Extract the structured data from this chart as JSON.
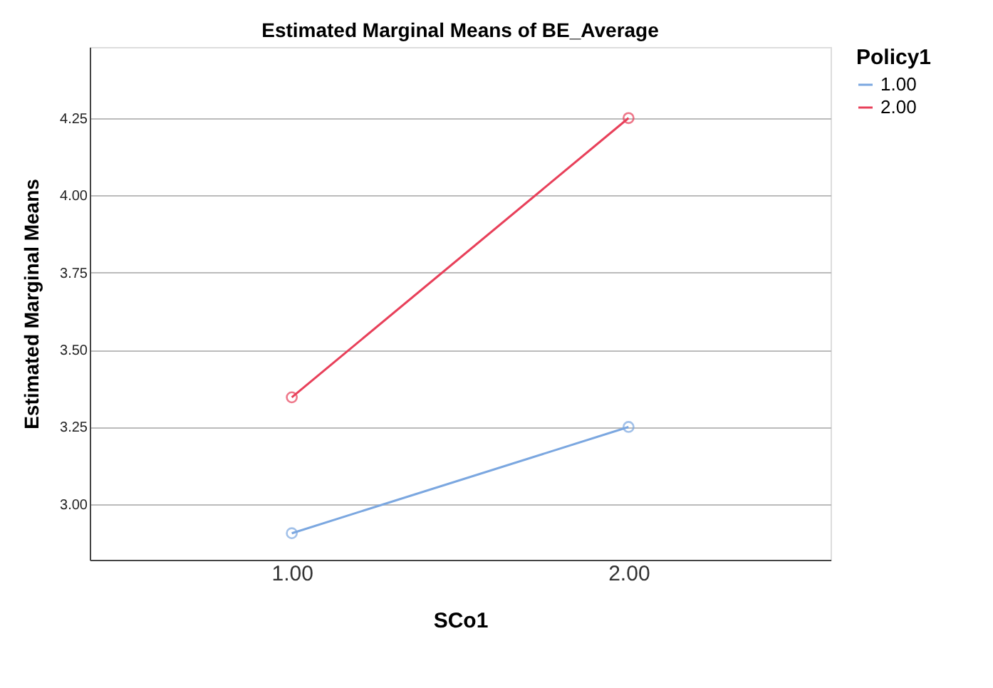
{
  "chart_data": {
    "type": "line",
    "title": "Estimated Marginal Means of BE_Average",
    "xlabel": "SCo1",
    "ylabel": "Estimated Marginal Means",
    "legend_title": "Policy1",
    "categories": [
      "1.00",
      "2.00"
    ],
    "series": [
      {
        "name": "1.00",
        "color": "#7ba7e0",
        "values": [
          2.906,
          3.25
        ]
      },
      {
        "name": "2.00",
        "color": "#e8405a",
        "values": [
          3.346,
          4.25
        ]
      }
    ],
    "ylim": [
      2.82,
      4.48
    ],
    "yticks": [
      {
        "value": 3.0,
        "label": "3.00"
      },
      {
        "value": 3.25,
        "label": "3.25"
      },
      {
        "value": 3.5,
        "label": "3.50"
      },
      {
        "value": 3.75,
        "label": "3.75"
      },
      {
        "value": 4.0,
        "label": "4.00"
      },
      {
        "value": 4.25,
        "label": "4.25"
      }
    ],
    "grid": "y",
    "legend": "top right",
    "marker": "circle",
    "line_style": "solid"
  }
}
